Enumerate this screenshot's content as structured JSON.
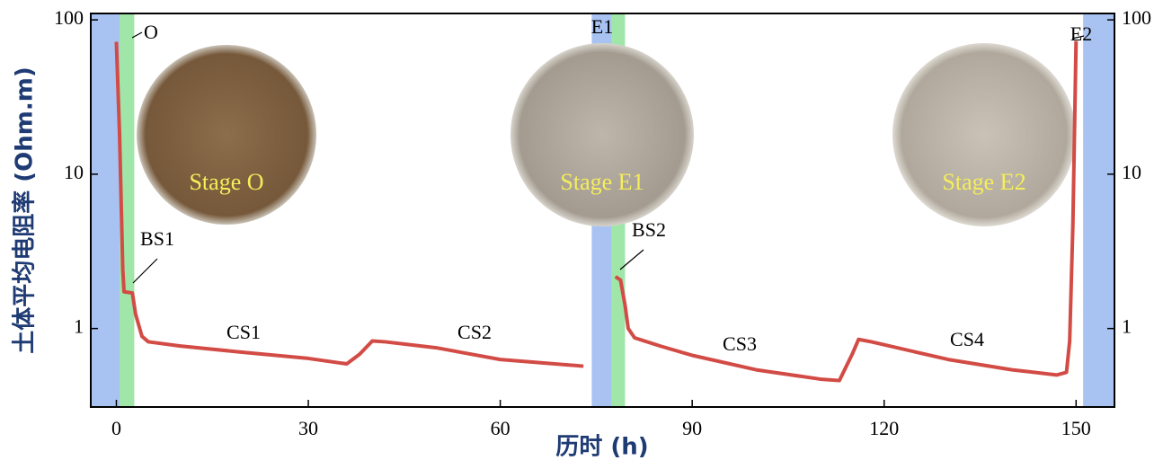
{
  "chart_data": {
    "type": "line",
    "xlabel": "历时 (h)",
    "ylabel": "土体平均电阻率 (Ohm.m)",
    "x": [
      0,
      0.5,
      1,
      1.2,
      2.5,
      3,
      4,
      5,
      10,
      20,
      30,
      36,
      38,
      40,
      42,
      50,
      60,
      73,
      75,
      78,
      78.8,
      79.5,
      80,
      81,
      85,
      90,
      100,
      110,
      113,
      115,
      116,
      118,
      130,
      140,
      147,
      148.5,
      149,
      149.5,
      150
    ],
    "series": [
      {
        "color": "#d24b45",
        "values": [
          72,
          18,
          2.4,
          1.73,
          1.7,
          1.24,
          0.89,
          0.82,
          0.77,
          0.7,
          0.64,
          0.59,
          0.68,
          0.83,
          0.82,
          0.75,
          0.63,
          0.57,
          null,
          2.17,
          2.06,
          1.42,
          1.0,
          0.87,
          0.77,
          0.67,
          0.54,
          0.47,
          0.46,
          0.68,
          0.85,
          0.82,
          0.63,
          0.54,
          0.5,
          0.52,
          0.83,
          4.7,
          73
        ]
      }
    ],
    "xlim": [
      -4,
      156
    ],
    "xticks": [
      0,
      30,
      60,
      90,
      120,
      150
    ],
    "ylim": [
      0.31,
      110
    ],
    "yticks": [
      1,
      10,
      100
    ],
    "ylog": true,
    "y2lim": [
      0.31,
      110
    ],
    "y2ticks": [
      1,
      10,
      100
    ],
    "bands": [
      {
        "x": [
          -4,
          0.5
        ],
        "color": "#a8c3f2"
      },
      {
        "x": [
          0.5,
          2.8
        ],
        "color": "#9fe6a8"
      },
      {
        "x": [
          74.3,
          77.4
        ],
        "color": "#a8c3f2"
      },
      {
        "x": [
          77.4,
          79.5
        ],
        "color": "#9fe6a8"
      },
      {
        "x": [
          151.1,
          156
        ],
        "color": "#a8c3f2"
      }
    ],
    "annotations": [
      "O",
      "E1",
      "E2",
      "BS1",
      "BS2",
      "CS1",
      "CS2",
      "CS3",
      "CS4"
    ],
    "stages": [
      "Stage O",
      "Stage E1",
      "Stage E2"
    ]
  }
}
